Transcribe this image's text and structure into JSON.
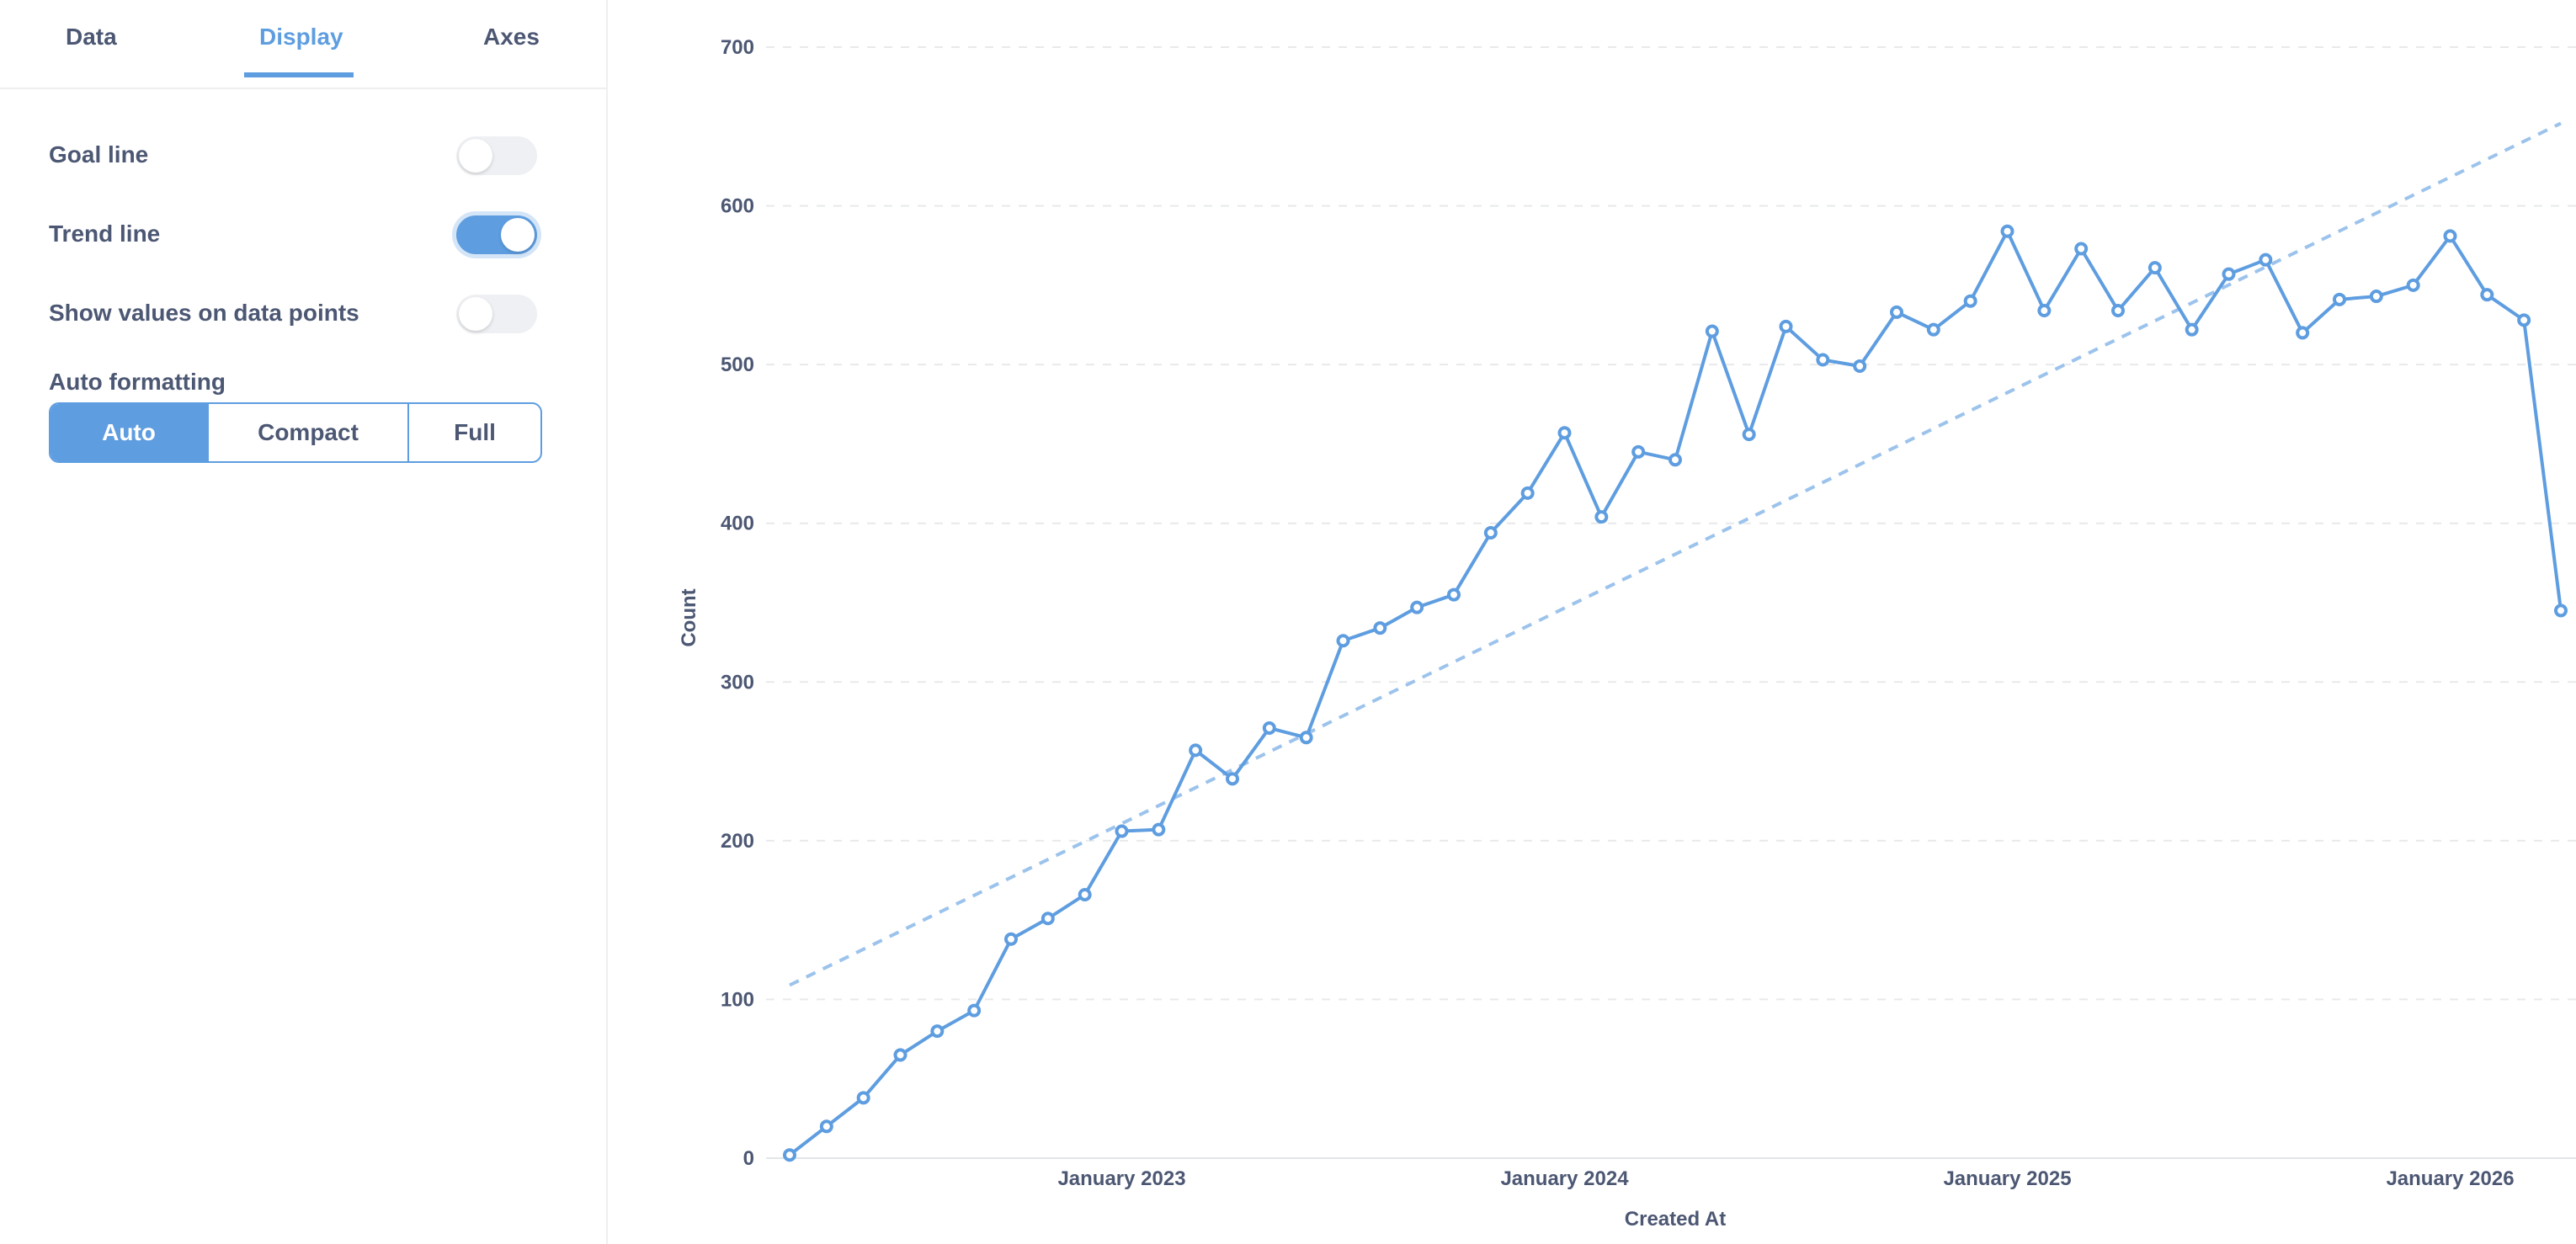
{
  "tabs": [
    {
      "label": "Data",
      "active": false
    },
    {
      "label": "Display",
      "active": true
    },
    {
      "label": "Axes",
      "active": false
    }
  ],
  "settings": {
    "goal_line": {
      "label": "Goal line",
      "on": false
    },
    "trend_line": {
      "label": "Trend line",
      "on": true
    },
    "show_values": {
      "label": "Show values on data points",
      "on": false
    },
    "auto_formatting": {
      "label": "Auto formatting",
      "options": [
        "Auto",
        "Compact",
        "Full"
      ],
      "selected": "Auto"
    }
  },
  "colors": {
    "accent": "#5e9de0",
    "series": "#5e9de0",
    "trend": "#9cc3ec",
    "grid": "#e8e9eb"
  },
  "chart_data": {
    "type": "line",
    "xlabel": "Created At",
    "ylabel": "Count",
    "ylim": [
      0,
      700
    ],
    "yticks": [
      0,
      100,
      200,
      300,
      400,
      500,
      600,
      700
    ],
    "xtick_labels": [
      "January 2023",
      "January 2024",
      "January 2025",
      "January 2026"
    ],
    "grid": true,
    "x": [
      "2022-04",
      "2022-05",
      "2022-06",
      "2022-07",
      "2022-08",
      "2022-09",
      "2022-10",
      "2022-11",
      "2022-12",
      "2023-01",
      "2023-02",
      "2023-03",
      "2023-04",
      "2023-05",
      "2023-06",
      "2023-07",
      "2023-08",
      "2023-09",
      "2023-10",
      "2023-11",
      "2023-12",
      "2024-01",
      "2024-02",
      "2024-03",
      "2024-04",
      "2024-05",
      "2024-06",
      "2024-07",
      "2024-08",
      "2024-09",
      "2024-10",
      "2024-11",
      "2024-12",
      "2025-01",
      "2025-02",
      "2025-03",
      "2025-04",
      "2025-05",
      "2025-06",
      "2025-07",
      "2025-08",
      "2025-09",
      "2025-10",
      "2025-11",
      "2025-12",
      "2026-01",
      "2026-02",
      "2026-03",
      "2026-04"
    ],
    "values": [
      2,
      20,
      38,
      65,
      80,
      93,
      138,
      151,
      166,
      206,
      207,
      257,
      239,
      271,
      265,
      326,
      334,
      347,
      355,
      394,
      419,
      457,
      404,
      445,
      440,
      521,
      456,
      524,
      503,
      499,
      533,
      522,
      540,
      584,
      534,
      573,
      534,
      561,
      522,
      557,
      566,
      520,
      541,
      543,
      550,
      581,
      544,
      528,
      345
    ],
    "trend_line": {
      "start": 109,
      "end": 652
    }
  }
}
